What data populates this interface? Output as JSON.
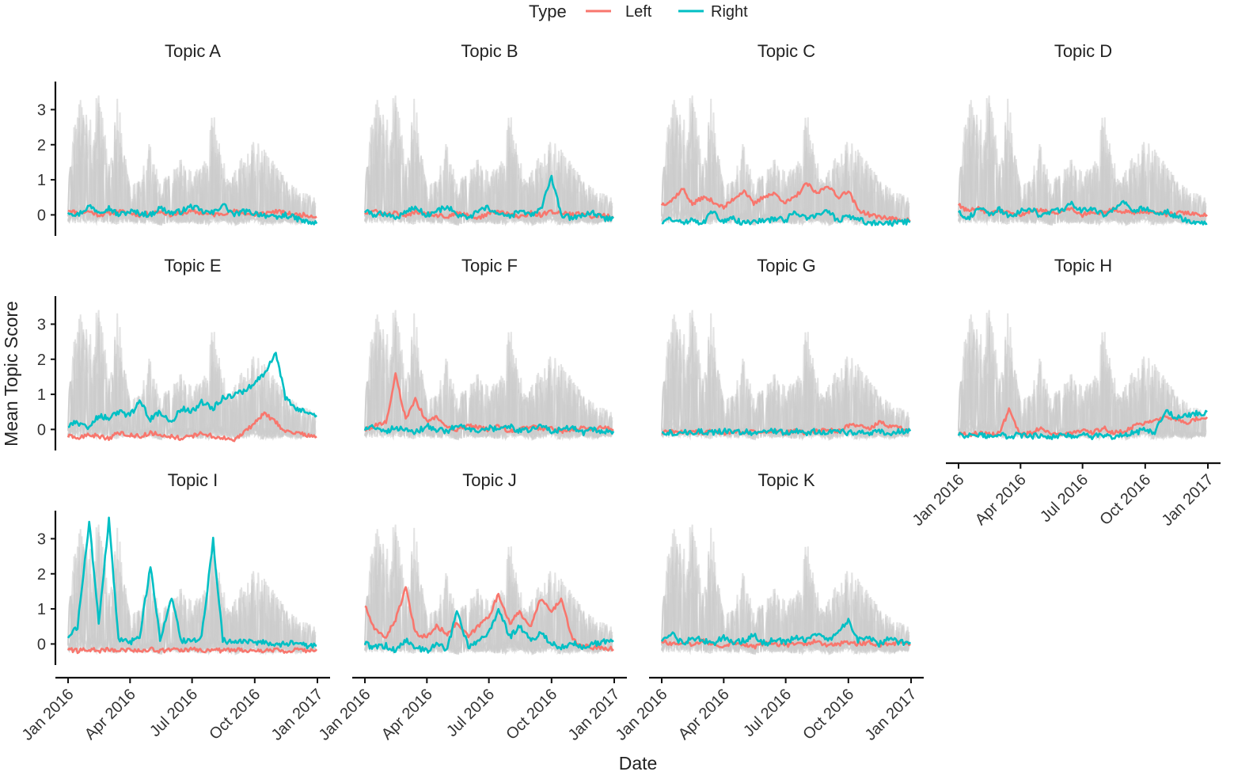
{
  "chart_data": {
    "type": "line",
    "layout": "facet-grid",
    "xlabel": "Date",
    "ylabel": "Mean Topic Score",
    "x_range": [
      "2016-01-01",
      "2017-01-01"
    ],
    "y_range": [
      -0.6,
      3.8
    ],
    "y_ticks": [
      0,
      1,
      2,
      3
    ],
    "x_ticks": [
      {
        "date": "2016-01-01",
        "label": "Jan 2016"
      },
      {
        "date": "2016-04-01",
        "label": "Apr 2016"
      },
      {
        "date": "2016-07-01",
        "label": "Jul 2016"
      },
      {
        "date": "2016-10-01",
        "label": "Oct 2016"
      },
      {
        "date": "2017-01-01",
        "label": "Jan 2017"
      }
    ],
    "legend": {
      "title": "Type",
      "position": "top",
      "entries": [
        {
          "label": "Left",
          "color": "#F8766D"
        },
        {
          "label": "Right",
          "color": "#00BFC4"
        }
      ]
    },
    "background_series_color": "#cccccc",
    "x_sample_dates": [
      "2016-01-01",
      "2016-01-15",
      "2016-02-01",
      "2016-02-15",
      "2016-03-01",
      "2016-03-15",
      "2016-04-01",
      "2016-04-15",
      "2016-05-01",
      "2016-05-15",
      "2016-06-01",
      "2016-06-15",
      "2016-07-01",
      "2016-07-15",
      "2016-08-01",
      "2016-08-15",
      "2016-09-01",
      "2016-09-15",
      "2016-10-01",
      "2016-10-15",
      "2016-11-01",
      "2016-11-15",
      "2016-12-01",
      "2016-12-15",
      "2016-12-31"
    ],
    "facets": [
      {
        "title": "Topic A",
        "left": [
          0.15,
          0.05,
          0.1,
          0.0,
          0.05,
          0.1,
          0.05,
          0.0,
          0.05,
          0.1,
          0.0,
          0.05,
          0.1,
          0.05,
          0.0,
          0.05,
          0.1,
          0.05,
          0.0,
          0.05,
          0.1,
          0.05,
          0.0,
          0.0,
          -0.05
        ],
        "right": [
          0.1,
          0.0,
          0.25,
          0.1,
          0.2,
          0.0,
          0.1,
          0.05,
          0.0,
          0.2,
          0.05,
          0.1,
          0.25,
          0.1,
          0.05,
          0.3,
          0.0,
          0.1,
          0.05,
          0.0,
          -0.1,
          0.0,
          -0.1,
          -0.2,
          -0.25
        ]
      },
      {
        "title": "Topic B",
        "left": [
          0.05,
          0.1,
          0.0,
          0.05,
          -0.05,
          0.1,
          0.05,
          0.0,
          -0.05,
          0.05,
          0.0,
          -0.1,
          0.05,
          0.1,
          0.0,
          -0.05,
          0.05,
          0.0,
          0.1,
          0.05,
          0.0,
          0.05,
          -0.05,
          0.0,
          -0.05
        ],
        "right": [
          0.1,
          0.0,
          0.05,
          -0.1,
          0.1,
          0.2,
          0.0,
          0.1,
          0.25,
          0.0,
          -0.1,
          0.1,
          0.2,
          0.0,
          -0.05,
          0.1,
          0.0,
          0.15,
          1.05,
          0.0,
          -0.1,
          0.0,
          0.05,
          -0.1,
          -0.1
        ]
      },
      {
        "title": "Topic C",
        "left": [
          0.3,
          0.4,
          0.75,
          0.3,
          0.5,
          0.4,
          0.2,
          0.45,
          0.7,
          0.3,
          0.55,
          0.6,
          0.35,
          0.5,
          0.9,
          0.6,
          0.85,
          0.5,
          0.7,
          0.15,
          0.0,
          -0.05,
          -0.1,
          -0.15,
          -0.15
        ],
        "right": [
          -0.2,
          -0.1,
          -0.25,
          -0.1,
          -0.25,
          0.1,
          -0.2,
          -0.1,
          -0.25,
          -0.15,
          -0.2,
          -0.1,
          -0.15,
          0.1,
          -0.1,
          0.0,
          0.1,
          -0.15,
          -0.05,
          -0.1,
          -0.25,
          -0.2,
          -0.25,
          -0.2,
          -0.2
        ]
      },
      {
        "title": "Topic D",
        "left": [
          0.3,
          0.1,
          0.2,
          0.0,
          0.1,
          0.05,
          0.0,
          0.1,
          0.15,
          0.05,
          0.1,
          0.2,
          0.0,
          0.1,
          0.05,
          0.15,
          0.1,
          0.05,
          0.1,
          0.05,
          0.0,
          0.05,
          0.05,
          0.0,
          0.0
        ],
        "right": [
          0.1,
          -0.1,
          0.2,
          0.0,
          0.15,
          -0.05,
          0.1,
          0.2,
          -0.05,
          0.1,
          0.15,
          0.3,
          0.1,
          0.2,
          0.0,
          0.15,
          0.35,
          0.1,
          0.2,
          0.05,
          0.1,
          -0.05,
          -0.15,
          -0.2,
          -0.25
        ]
      },
      {
        "title": "Topic E",
        "left": [
          -0.2,
          -0.25,
          -0.15,
          -0.2,
          -0.25,
          -0.1,
          -0.15,
          -0.2,
          -0.1,
          -0.15,
          -0.2,
          -0.25,
          -0.2,
          -0.1,
          -0.2,
          -0.25,
          -0.3,
          -0.1,
          0.2,
          0.45,
          0.2,
          -0.05,
          -0.1,
          -0.15,
          -0.2
        ],
        "right": [
          0.1,
          0.2,
          0.0,
          0.4,
          0.3,
          0.5,
          0.4,
          0.8,
          0.3,
          0.5,
          0.2,
          0.6,
          0.5,
          0.8,
          0.6,
          0.9,
          1.0,
          1.1,
          1.3,
          1.6,
          2.2,
          0.9,
          0.6,
          0.5,
          0.4
        ]
      },
      {
        "title": "Topic F",
        "left": [
          0.0,
          0.1,
          0.2,
          1.55,
          0.3,
          0.85,
          0.2,
          0.35,
          0.1,
          0.0,
          0.1,
          0.05,
          0.0,
          0.1,
          -0.05,
          0.0,
          0.1,
          0.0,
          0.05,
          -0.05,
          0.0,
          0.05,
          0.0,
          0.05,
          0.0
        ],
        "right": [
          0.0,
          0.1,
          -0.05,
          0.05,
          0.0,
          -0.1,
          0.1,
          0.0,
          -0.05,
          0.1,
          0.0,
          -0.1,
          0.05,
          0.0,
          0.1,
          -0.05,
          0.0,
          0.1,
          -0.05,
          0.0,
          0.05,
          -0.1,
          0.0,
          -0.05,
          -0.05
        ]
      },
      {
        "title": "Topic G",
        "left": [
          -0.1,
          -0.05,
          -0.1,
          -0.05,
          -0.1,
          -0.05,
          -0.1,
          -0.05,
          -0.1,
          -0.05,
          -0.1,
          -0.05,
          -0.1,
          -0.05,
          -0.1,
          -0.05,
          0.0,
          -0.05,
          0.1,
          0.15,
          0.0,
          0.2,
          0.1,
          0.05,
          0.0
        ],
        "right": [
          -0.05,
          -0.1,
          -0.05,
          -0.1,
          -0.05,
          -0.1,
          -0.05,
          -0.1,
          -0.05,
          -0.1,
          -0.05,
          -0.05,
          -0.1,
          -0.05,
          -0.1,
          -0.05,
          -0.1,
          -0.05,
          -0.1,
          -0.05,
          -0.1,
          -0.05,
          -0.1,
          -0.05,
          -0.05
        ]
      },
      {
        "title": "Topic H",
        "left": [
          -0.1,
          -0.15,
          -0.1,
          -0.15,
          -0.1,
          0.55,
          -0.15,
          -0.1,
          0.05,
          -0.1,
          -0.15,
          -0.1,
          -0.05,
          -0.1,
          0.05,
          -0.1,
          -0.05,
          0.1,
          0.2,
          0.3,
          0.35,
          0.3,
          0.2,
          0.3,
          0.35
        ],
        "right": [
          -0.15,
          -0.2,
          -0.15,
          -0.2,
          -0.15,
          -0.2,
          -0.15,
          -0.2,
          -0.15,
          -0.2,
          -0.15,
          -0.2,
          -0.15,
          -0.2,
          -0.15,
          -0.2,
          -0.15,
          -0.1,
          0.0,
          -0.1,
          0.55,
          0.3,
          0.4,
          0.45,
          0.5
        ]
      },
      {
        "title": "Topic I",
        "left": [
          -0.15,
          -0.2,
          -0.15,
          -0.2,
          -0.15,
          -0.2,
          -0.15,
          -0.2,
          -0.15,
          -0.2,
          -0.15,
          -0.2,
          -0.15,
          -0.2,
          -0.15,
          -0.2,
          -0.15,
          -0.2,
          -0.15,
          -0.2,
          -0.15,
          -0.2,
          -0.15,
          -0.2,
          -0.15
        ],
        "right": [
          0.2,
          0.5,
          3.5,
          0.6,
          3.55,
          0.1,
          0.05,
          0.2,
          2.25,
          0.1,
          1.3,
          0.1,
          0.05,
          0.2,
          2.95,
          0.1,
          0.05,
          0.1,
          0.0,
          0.05,
          -0.05,
          0.0,
          0.05,
          -0.05,
          -0.05
        ]
      },
      {
        "title": "Topic J",
        "left": [
          1.1,
          0.4,
          0.2,
          0.7,
          1.6,
          0.3,
          0.2,
          0.5,
          0.3,
          0.6,
          0.2,
          0.5,
          0.8,
          1.4,
          0.6,
          0.9,
          0.5,
          1.3,
          0.9,
          1.3,
          0.1,
          -0.05,
          -0.1,
          -0.1,
          -0.15
        ],
        "right": [
          0.0,
          -0.1,
          -0.05,
          -0.2,
          0.1,
          -0.1,
          -0.2,
          0.0,
          -0.15,
          0.95,
          -0.1,
          0.05,
          0.3,
          1.0,
          0.2,
          0.5,
          0.1,
          0.3,
          0.0,
          -0.1,
          0.05,
          -0.1,
          0.0,
          0.05,
          0.1
        ]
      },
      {
        "title": "Topic K",
        "left": [
          0.1,
          0.0,
          0.05,
          -0.05,
          0.1,
          0.0,
          -0.05,
          0.05,
          0.0,
          -0.1,
          0.05,
          0.0,
          -0.05,
          0.05,
          0.0,
          0.1,
          -0.05,
          0.0,
          0.05,
          0.0,
          0.05,
          -0.05,
          0.0,
          0.05,
          0.0
        ],
        "right": [
          0.1,
          0.3,
          0.0,
          0.2,
          0.1,
          0.0,
          0.2,
          0.05,
          0.1,
          0.25,
          0.0,
          0.15,
          0.05,
          0.2,
          0.1,
          0.25,
          0.1,
          0.3,
          0.65,
          0.1,
          0.2,
          0.0,
          0.15,
          0.05,
          0.05
        ]
      }
    ],
    "background_envelope": {
      "note": "grey band of all topics' series",
      "upper": [
        1.1,
        3.55,
        2.7,
        3.6,
        1.5,
        3.6,
        0.9,
        1.0,
        2.2,
        0.9,
        1.3,
        1.6,
        1.2,
        1.4,
        3.0,
        1.5,
        1.4,
        1.7,
        2.2,
        1.9,
        1.5,
        1.0,
        0.8,
        0.6,
        0.5
      ],
      "lower": [
        -0.3,
        -0.35,
        -0.3,
        -0.35,
        -0.3,
        -0.4,
        -0.3,
        -0.35,
        -0.3,
        -0.4,
        -0.3,
        -0.35,
        -0.3,
        -0.4,
        -0.35,
        -0.3,
        -0.4,
        -0.35,
        -0.3,
        -0.4,
        -0.35,
        -0.3,
        -0.35,
        -0.3,
        -0.3
      ]
    }
  }
}
